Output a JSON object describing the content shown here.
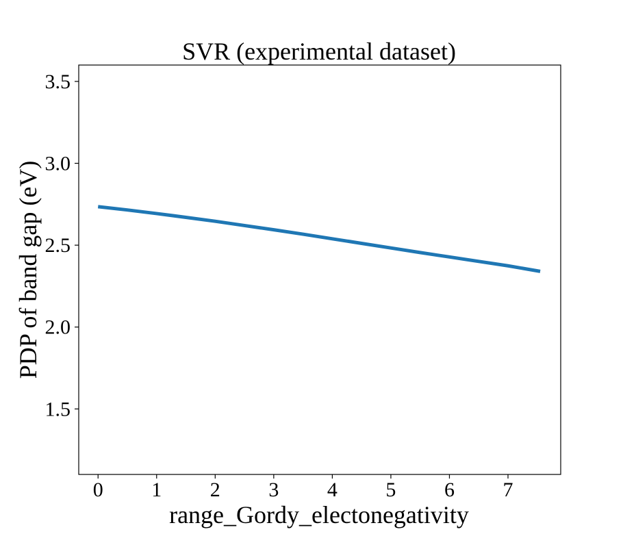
{
  "chart_data": {
    "type": "line",
    "title": "SVR (experimental dataset)",
    "xlabel": "range_Gordy_electonegativity",
    "ylabel": "PDP of band gap (eV)",
    "xlim": [
      -0.33,
      7.9
    ],
    "ylim": [
      1.1,
      3.6
    ],
    "xticks": [
      0,
      1,
      2,
      3,
      4,
      5,
      6,
      7
    ],
    "yticks": [
      1.5,
      2.0,
      2.5,
      3.0,
      3.5
    ],
    "xtick_labels": [
      "0",
      "1",
      "2",
      "3",
      "4",
      "5",
      "6",
      "7"
    ],
    "ytick_labels": [
      "1.5",
      "2.0",
      "2.5",
      "3.0",
      "3.5"
    ],
    "grid": false,
    "series": [
      {
        "color": "#1f77b4",
        "x": [
          0.0,
          0.5,
          1.0,
          1.5,
          2.0,
          2.5,
          3.0,
          3.5,
          4.0,
          4.5,
          5.0,
          5.5,
          6.0,
          6.5,
          7.0,
          7.55
        ],
        "y": [
          2.735,
          2.715,
          2.693,
          2.67,
          2.646,
          2.62,
          2.594,
          2.567,
          2.539,
          2.511,
          2.483,
          2.455,
          2.428,
          2.401,
          2.374,
          2.34
        ]
      }
    ]
  }
}
